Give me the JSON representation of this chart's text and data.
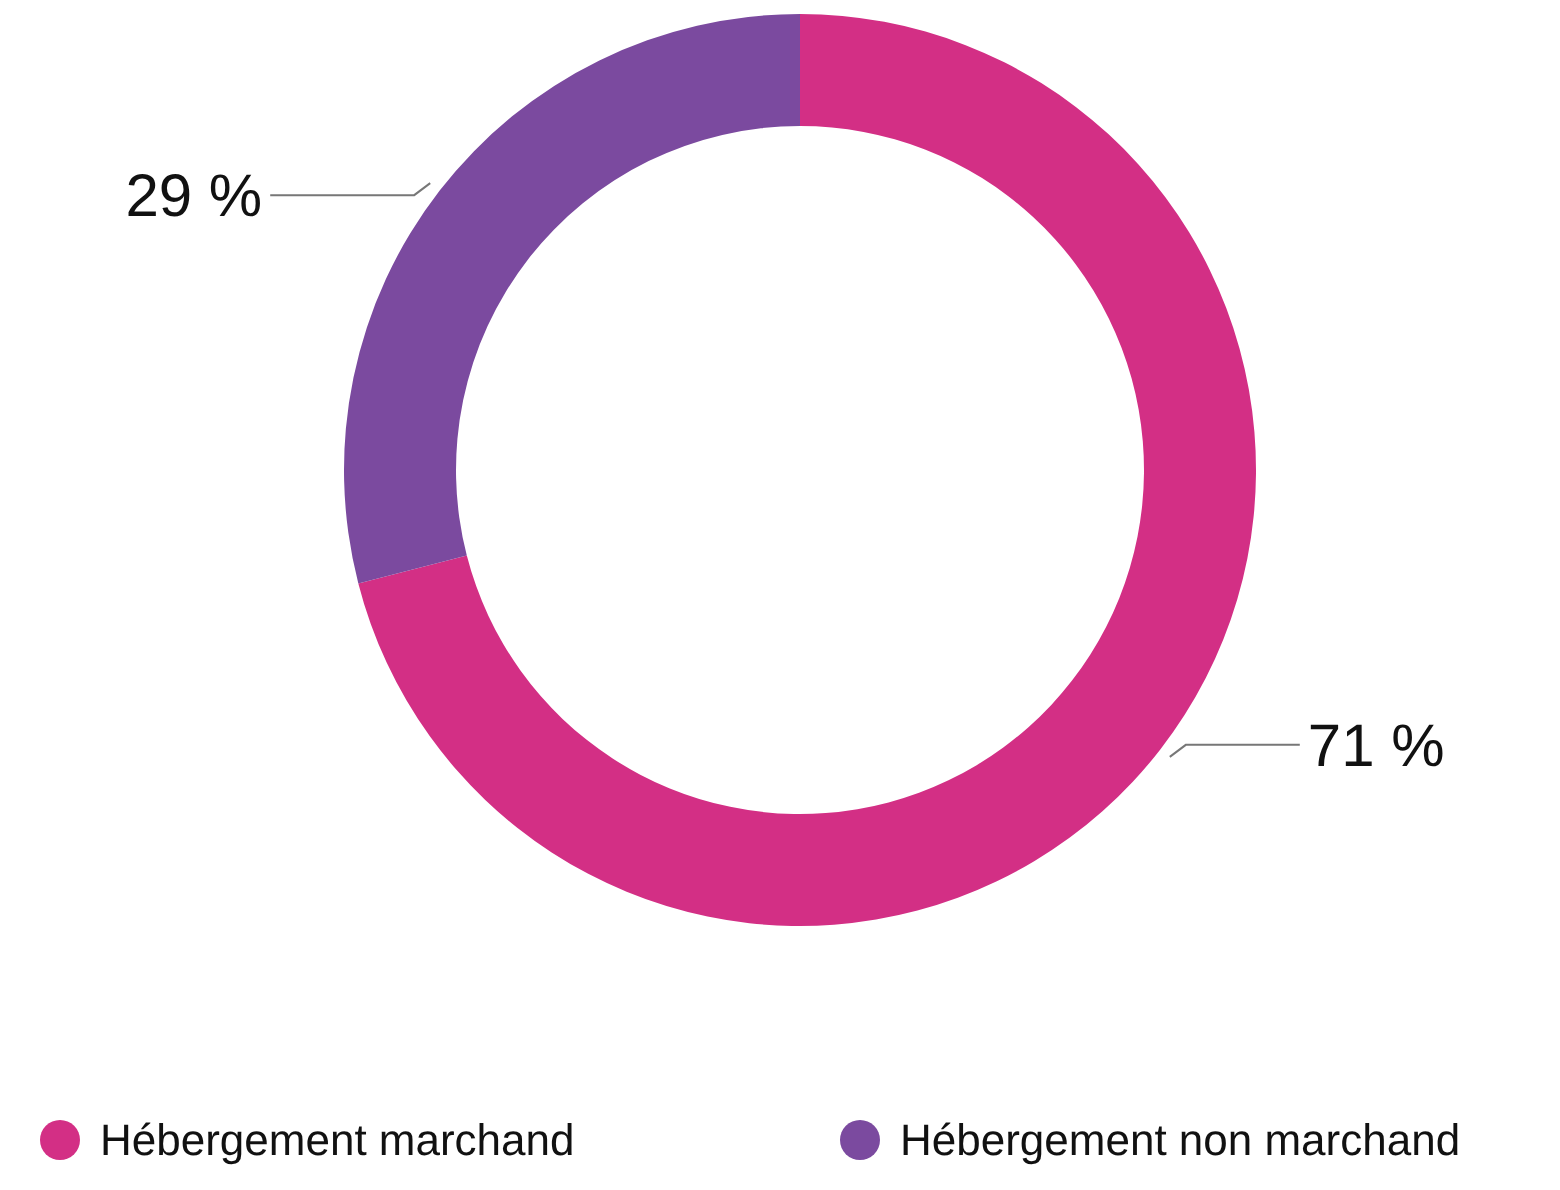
{
  "chart_data": {
    "type": "donut",
    "categories": [
      "Hébergement marchand",
      "Hébergement non marchand"
    ],
    "values": [
      71,
      29
    ],
    "colors": [
      "#d32f85",
      "#7b4a9f"
    ],
    "value_labels": [
      "71 %",
      "29 %"
    ],
    "legend": "bottom"
  }
}
